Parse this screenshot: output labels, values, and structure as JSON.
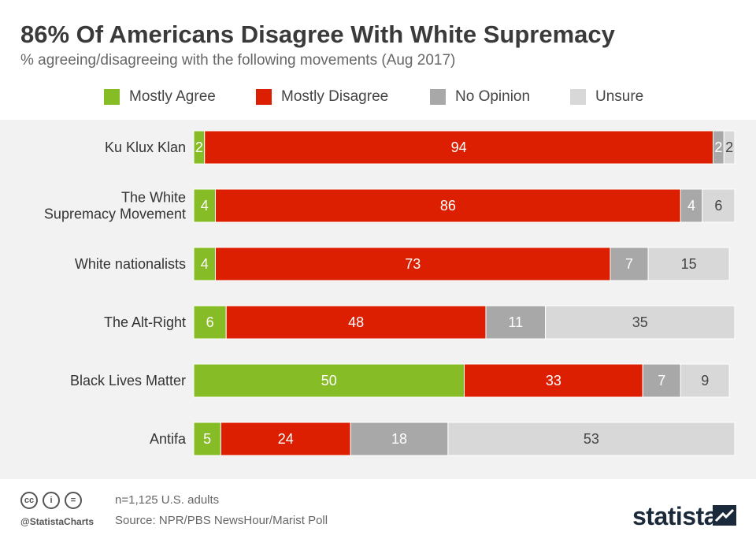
{
  "header": {
    "title": "86% Of Americans Disagree With White Supremacy",
    "subtitle": "% agreeing/disagreeing with the following movements (Aug 2017)"
  },
  "legend": [
    {
      "label": "Mostly Agree",
      "color": "#86bc25"
    },
    {
      "label": "Mostly Disagree",
      "color": "#dc1f00"
    },
    {
      "label": "No Opinion",
      "color": "#a8a8a8"
    },
    {
      "label": "Unsure",
      "color": "#d8d8d8"
    }
  ],
  "chart_data": {
    "type": "bar",
    "orientation": "horizontal",
    "stacked": true,
    "categories": [
      "Ku Klux Klan",
      "The White\nSupremacy Movement",
      "White nationalists",
      "The Alt-Right",
      "Black Lives Matter",
      "Antifa"
    ],
    "series": [
      {
        "name": "Mostly Agree",
        "color": "#86bc25",
        "values": [
          2,
          4,
          4,
          6,
          50,
          5
        ]
      },
      {
        "name": "Mostly Disagree",
        "color": "#dc1f00",
        "values": [
          94,
          86,
          73,
          48,
          33,
          24
        ]
      },
      {
        "name": "No Opinion",
        "color": "#a8a8a8",
        "values": [
          2,
          4,
          7,
          11,
          7,
          18
        ]
      },
      {
        "name": "Unsure",
        "color": "#d8d8d8",
        "values": [
          2,
          6,
          15,
          35,
          9,
          53
        ]
      }
    ],
    "xlim": [
      0,
      100
    ],
    "grid": false,
    "legend_position": "top",
    "background": "#f2f2f2"
  },
  "footer": {
    "sample": "n=1,125 U.S. adults",
    "source": "Source: NPR/PBS NewsHour/Marist Poll",
    "handle": "@StatistaCharts",
    "brand": "statista",
    "license_icons": [
      "cc-icon",
      "attribution-icon",
      "no-derivatives-icon"
    ],
    "license_glyphs": [
      "cc",
      "i",
      "="
    ]
  }
}
